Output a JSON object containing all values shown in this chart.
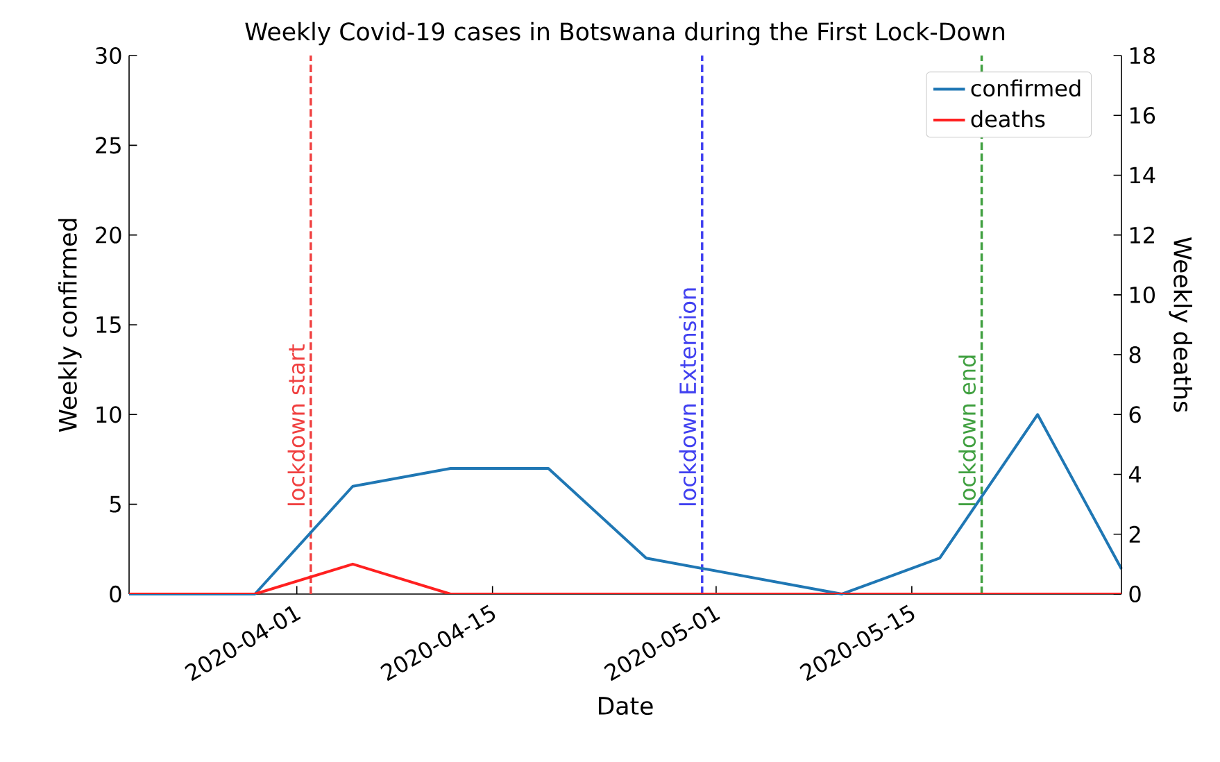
{
  "chart_data": {
    "type": "line",
    "title": "Weekly Covid-19 cases in Botswana during the First Lock-Down",
    "xlabel": "Date",
    "ylabel": "Weekly confirmed",
    "y2label": "Weekly deaths",
    "x": [
      "2020-03-20",
      "2020-03-29",
      "2020-04-05",
      "2020-04-12",
      "2020-04-19",
      "2020-04-26",
      "2020-05-10",
      "2020-05-17",
      "2020-05-24",
      "2020-05-30"
    ],
    "series": [
      {
        "name": "confirmed",
        "color": "#1f77b4",
        "values": [
          0,
          0,
          6,
          7,
          7,
          2,
          0,
          2,
          10,
          1.4
        ]
      },
      {
        "name": "deaths",
        "color": "#ff2020",
        "axis": "y2",
        "values": [
          0,
          0,
          1,
          0,
          0,
          0,
          0,
          0,
          0,
          0
        ]
      }
    ],
    "xlim": [
      "2020-03-20",
      "2020-05-30"
    ],
    "xticks": [
      {
        "value": "2020-04-01",
        "label": "2020-04-01"
      },
      {
        "value": "2020-04-15",
        "label": "2020-04-15"
      },
      {
        "value": "2020-05-01",
        "label": "2020-05-01"
      },
      {
        "value": "2020-05-15",
        "label": "2020-05-15"
      }
    ],
    "ylim": [
      0,
      30
    ],
    "yticks": [
      0,
      5,
      10,
      15,
      20,
      25,
      30
    ],
    "y2lim": [
      0,
      18
    ],
    "y2ticks": [
      0,
      2,
      4,
      6,
      8,
      10,
      12,
      14,
      16,
      18
    ],
    "ref_lines": [
      {
        "axis": "x",
        "value": "2020-04-02",
        "label": "lockdown start",
        "color": "#f04040",
        "line_style": "dashed"
      },
      {
        "axis": "x",
        "value": "2020-04-30",
        "label": "lockdown Extension",
        "color": "#4040f0",
        "line_style": "dashed"
      },
      {
        "axis": "x",
        "value": "2020-05-20",
        "label": "lockdown end",
        "color": "#40a040",
        "line_style": "dashed"
      }
    ],
    "grid": false,
    "legend": "top right",
    "marker": "none",
    "line_style": "solid"
  }
}
